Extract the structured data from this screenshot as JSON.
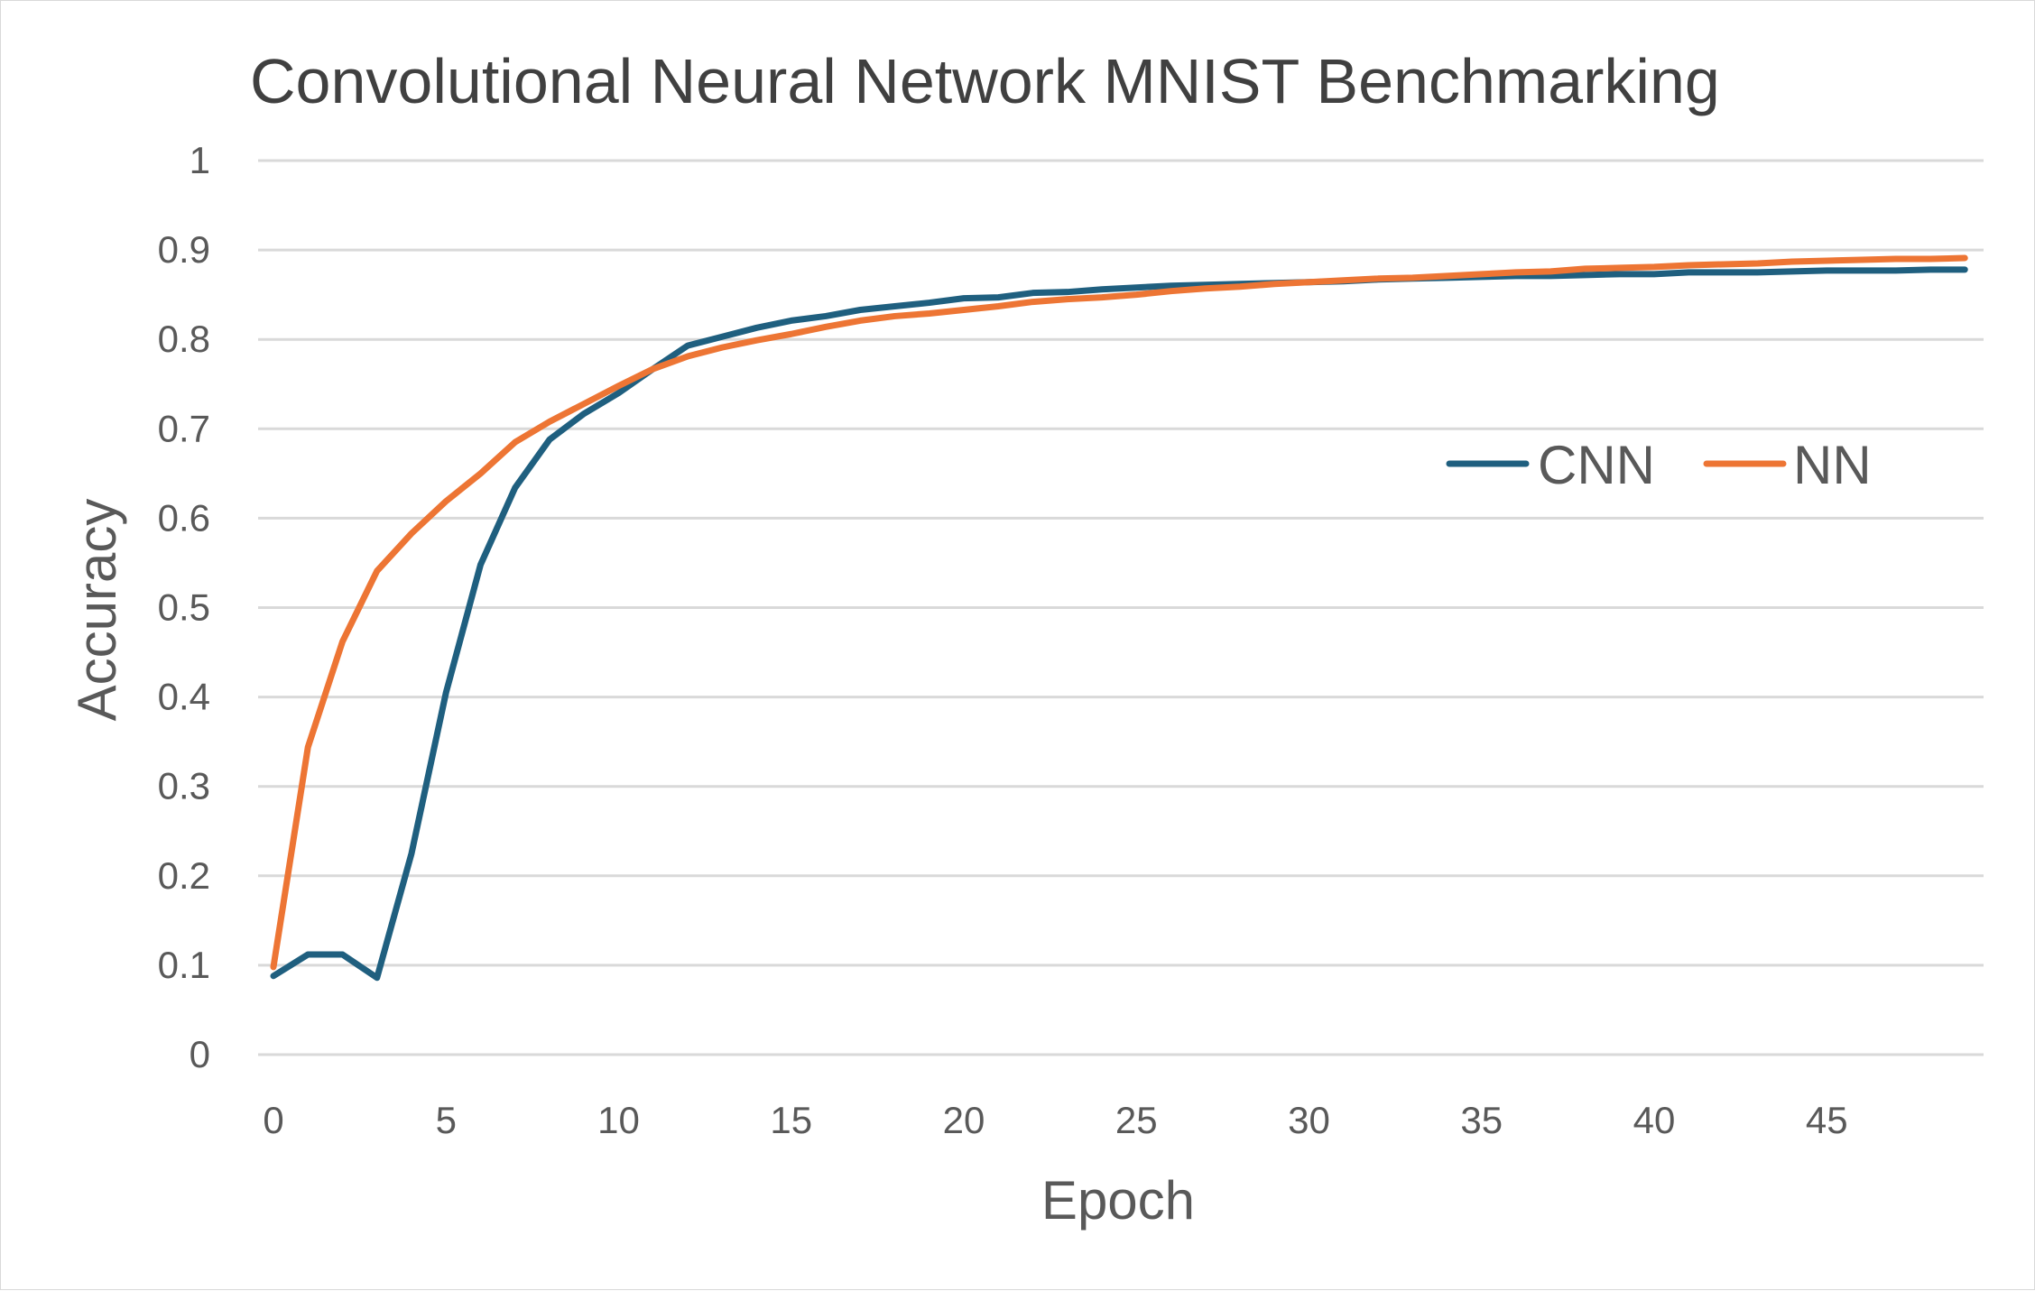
{
  "chart_data": {
    "type": "line",
    "title": "Convolutional Neural Network MNIST Benchmarking",
    "xlabel": "Epoch",
    "ylabel": "Accuracy",
    "xlim": [
      0,
      49
    ],
    "ylim": [
      0,
      1
    ],
    "x_ticks": [
      "0",
      "5",
      "10",
      "15",
      "20",
      "25",
      "30",
      "35",
      "40",
      "45"
    ],
    "y_ticks": [
      "0",
      "0.1",
      "0.2",
      "0.3",
      "0.4",
      "0.5",
      "0.6",
      "0.7",
      "0.8",
      "0.9",
      "1"
    ],
    "grid": true,
    "legend_position": "right",
    "x": [
      0,
      1,
      2,
      3,
      4,
      5,
      6,
      7,
      8,
      9,
      10,
      11,
      12,
      13,
      14,
      15,
      16,
      17,
      18,
      19,
      20,
      21,
      22,
      23,
      24,
      25,
      26,
      27,
      28,
      29,
      30,
      31,
      32,
      33,
      34,
      35,
      36,
      37,
      38,
      39,
      40,
      41,
      42,
      43,
      44,
      45,
      46,
      47,
      48,
      49
    ],
    "series": [
      {
        "name": "CNN",
        "color": "#1f5f7f",
        "values": [
          0.088,
          0.112,
          0.112,
          0.086,
          0.225,
          0.405,
          0.548,
          0.634,
          0.688,
          0.717,
          0.74,
          0.767,
          0.793,
          0.803,
          0.813,
          0.821,
          0.826,
          0.833,
          0.837,
          0.841,
          0.846,
          0.847,
          0.852,
          0.853,
          0.856,
          0.858,
          0.86,
          0.861,
          0.862,
          0.863,
          0.864,
          0.865,
          0.867,
          0.868,
          0.869,
          0.87,
          0.871,
          0.871,
          0.872,
          0.873,
          0.873,
          0.875,
          0.875,
          0.875,
          0.876,
          0.877,
          0.877,
          0.877,
          0.878,
          0.878
        ]
      },
      {
        "name": "NN",
        "color": "#ed7534",
        "values": [
          0.098,
          0.344,
          0.462,
          0.541,
          0.583,
          0.619,
          0.65,
          0.685,
          0.708,
          0.728,
          0.748,
          0.767,
          0.781,
          0.791,
          0.799,
          0.806,
          0.814,
          0.821,
          0.826,
          0.829,
          0.833,
          0.837,
          0.842,
          0.845,
          0.847,
          0.85,
          0.854,
          0.857,
          0.859,
          0.862,
          0.864,
          0.866,
          0.868,
          0.869,
          0.871,
          0.873,
          0.875,
          0.876,
          0.879,
          0.88,
          0.881,
          0.883,
          0.884,
          0.885,
          0.887,
          0.888,
          0.889,
          0.89,
          0.89,
          0.891
        ]
      }
    ]
  }
}
